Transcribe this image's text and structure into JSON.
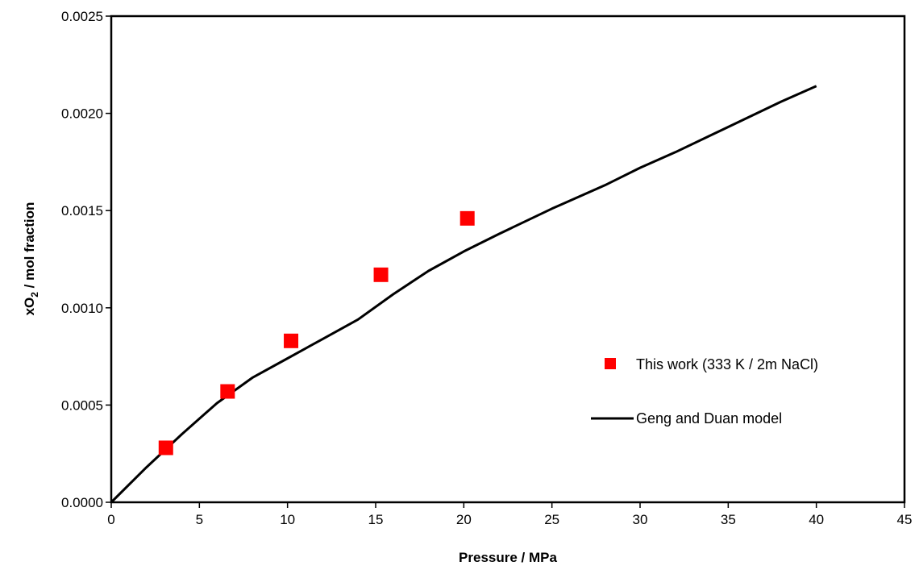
{
  "chart_data": {
    "type": "scatter",
    "xlabel": "Pressure / MPa",
    "ylabel": {
      "prefix": "xO",
      "subscript": "2",
      "suffix": " / mol fraction"
    },
    "xlim": [
      0,
      45
    ],
    "ylim": [
      0,
      0.0025
    ],
    "x_ticks": [
      "0",
      "5",
      "10",
      "15",
      "20",
      "25",
      "30",
      "35",
      "40",
      "45"
    ],
    "y_ticks": [
      "0.0000",
      "0.0005",
      "0.0010",
      "0.0015",
      "0.0020",
      "0.0025"
    ],
    "grid": false,
    "legend_position": "right",
    "series": [
      {
        "name": "This work (333 K / 2m NaCl)",
        "kind": "markers",
        "marker": "square",
        "color": "#ff0000",
        "x": [
          3.1,
          6.6,
          10.2,
          15.3,
          20.2
        ],
        "y": [
          0.00028,
          0.00057,
          0.00083,
          0.00117,
          0.00146
        ]
      },
      {
        "name": "Geng and Duan model",
        "kind": "line",
        "color": "#000000",
        "x": [
          0,
          2,
          4,
          6,
          8,
          10,
          12,
          14,
          16,
          18,
          20,
          22,
          25,
          28,
          30,
          32,
          35,
          38,
          40
        ],
        "y": [
          0.0,
          0.00018,
          0.00035,
          0.00051,
          0.00064,
          0.00074,
          0.00084,
          0.00094,
          0.00107,
          0.00119,
          0.00129,
          0.00138,
          0.00151,
          0.00163,
          0.00172,
          0.0018,
          0.00193,
          0.00206,
          0.00214
        ]
      }
    ]
  }
}
